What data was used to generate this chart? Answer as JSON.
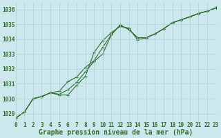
{
  "background_color": "#cce8ec",
  "grid_color": "#aacdd4",
  "line_color": "#2d6e2d",
  "marker_color": "#2d6e2d",
  "xlabel": "Graphe pression niveau de la mer (hPa)",
  "xlim": [
    0,
    23
  ],
  "ylim": [
    1028.5,
    1036.5
  ],
  "yticks": [
    1029,
    1030,
    1031,
    1032,
    1033,
    1034,
    1035,
    1036
  ],
  "xticks": [
    0,
    1,
    2,
    3,
    4,
    5,
    6,
    7,
    8,
    9,
    10,
    11,
    12,
    13,
    14,
    15,
    16,
    17,
    18,
    19,
    20,
    21,
    22,
    23
  ],
  "series": [
    [
      1028.7,
      1029.1,
      1030.0,
      1030.15,
      1030.4,
      1030.25,
      1030.25,
      1030.9,
      1031.5,
      1033.1,
      1033.9,
      1034.45,
      1034.85,
      1034.75,
      1033.95,
      1034.1,
      1034.35,
      1034.7,
      1035.1,
      1035.3,
      1035.5,
      1035.72,
      1035.88,
      1036.1
    ],
    [
      1028.7,
      1029.1,
      1030.0,
      1030.15,
      1030.4,
      1030.3,
      1030.6,
      1031.1,
      1031.8,
      1032.5,
      1033.0,
      1034.3,
      1034.95,
      1034.65,
      1034.1,
      1034.1,
      1034.35,
      1034.7,
      1035.1,
      1035.3,
      1035.5,
      1035.72,
      1035.88,
      1036.1
    ],
    [
      1028.7,
      1029.1,
      1030.0,
      1030.15,
      1030.4,
      1030.5,
      1031.15,
      1031.45,
      1032.1,
      1032.55,
      1033.45,
      1034.3,
      1034.95,
      1034.65,
      1034.1,
      1034.1,
      1034.35,
      1034.7,
      1035.1,
      1035.3,
      1035.5,
      1035.72,
      1035.88,
      1036.1
    ]
  ],
  "title_fontsize": 7,
  "tick_fontsize": 5.5,
  "marker_size": 3.5,
  "line_width": 0.8
}
